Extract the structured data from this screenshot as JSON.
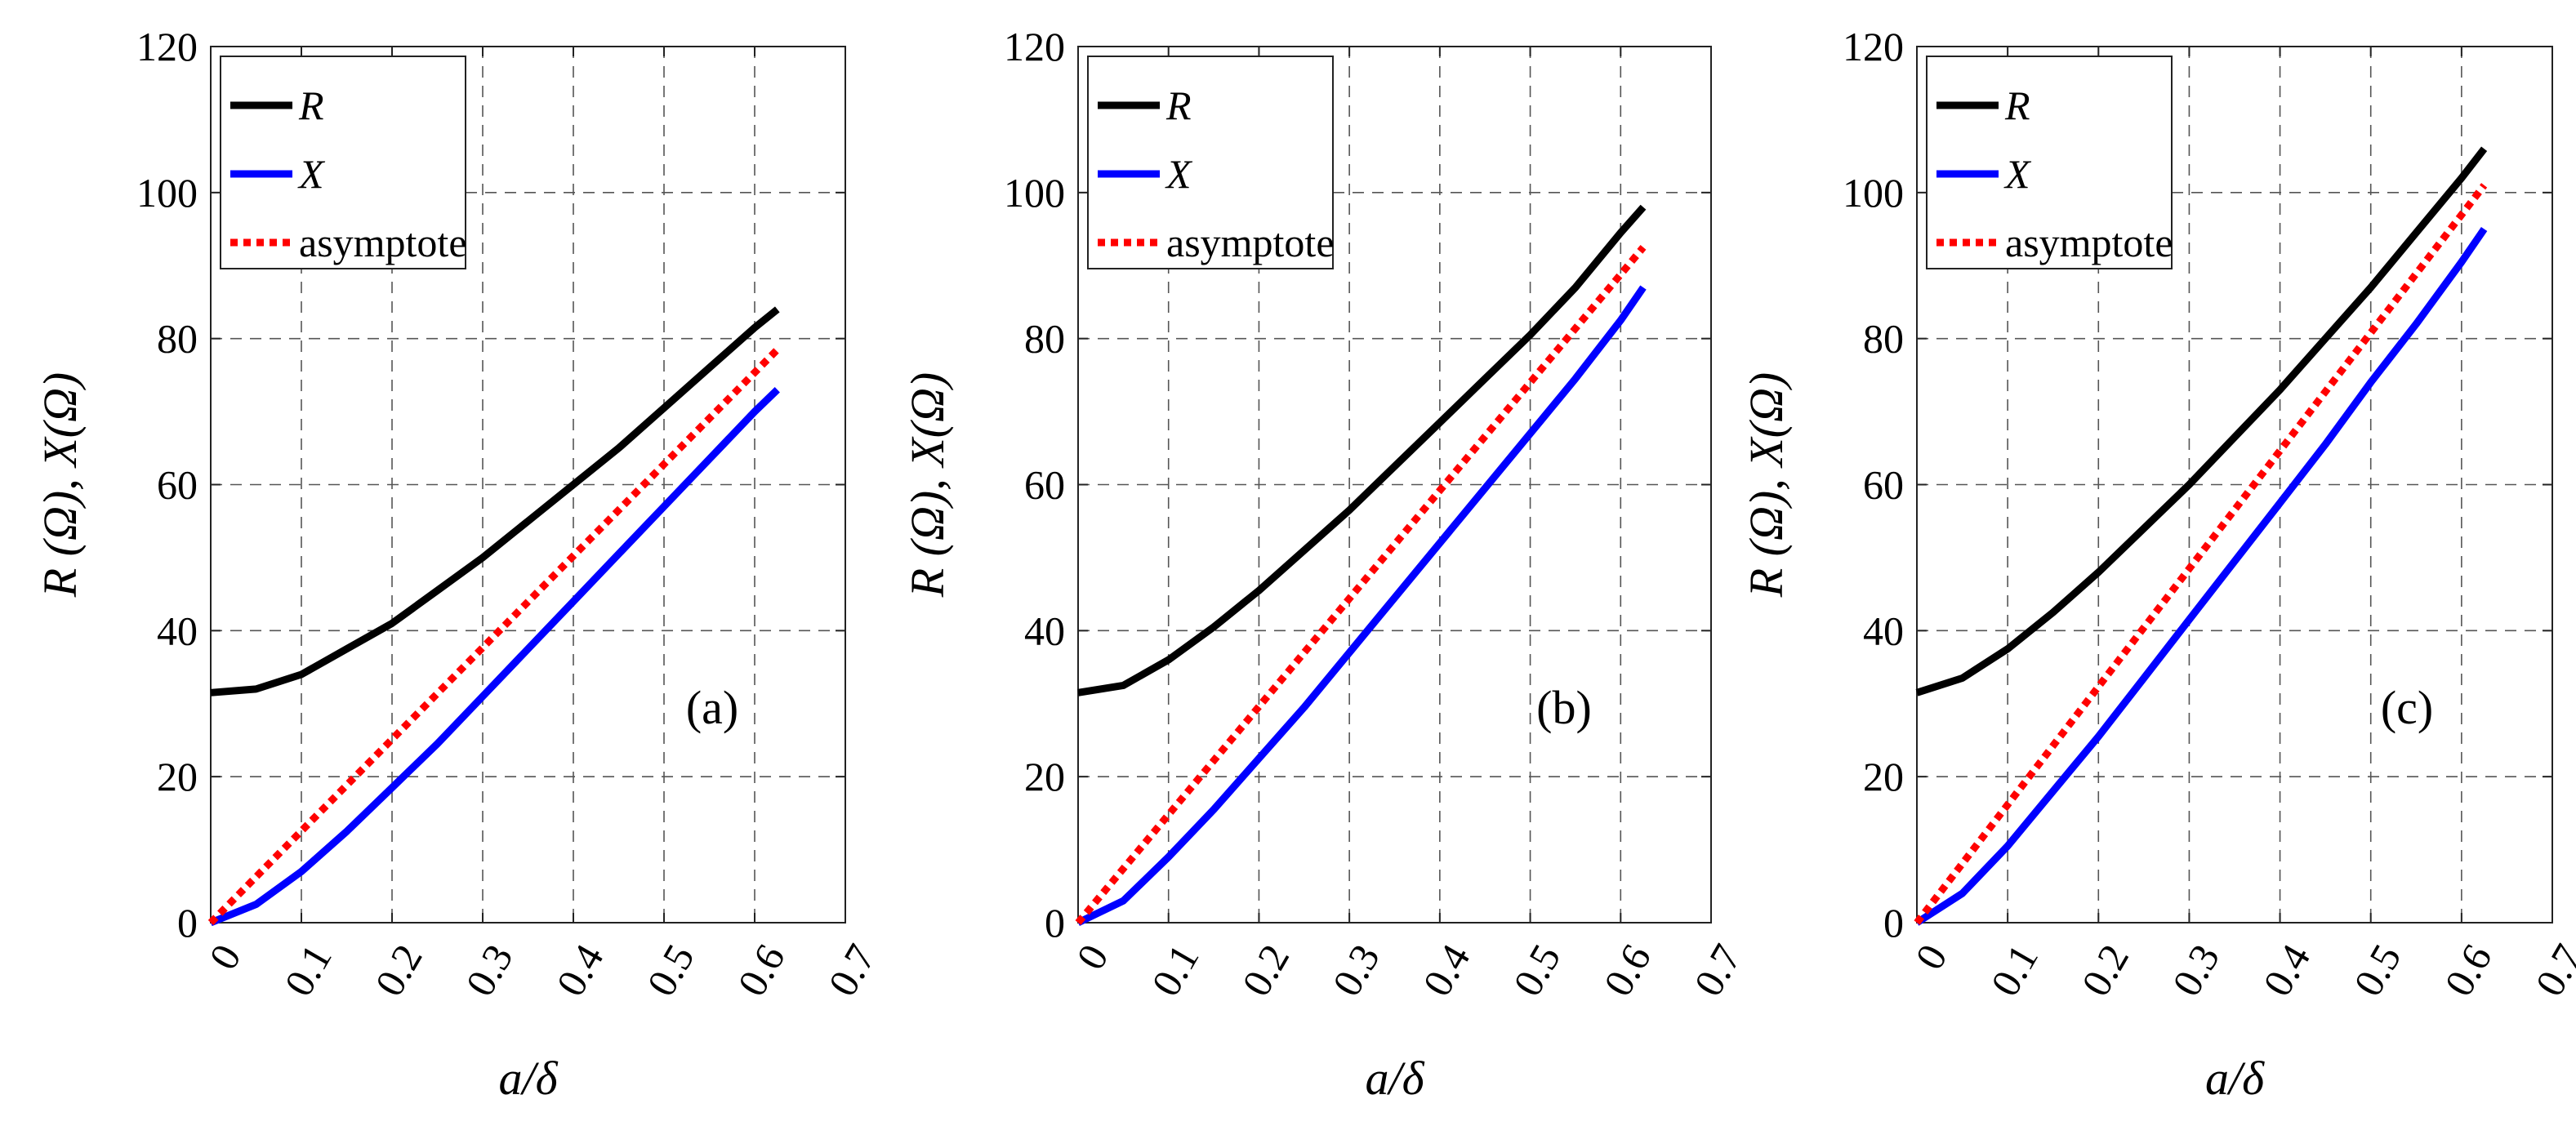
{
  "chart_data": [
    {
      "type": "line",
      "panel_label": "(a)",
      "xlabel": "a/δ",
      "ylabel": "R (Ω), X(Ω)",
      "xlim": [
        0,
        0.7
      ],
      "ylim": [
        0,
        120
      ],
      "xticks": [
        "0",
        "0.1",
        "0.2",
        "0.3",
        "0.4",
        "0.5",
        "0.6",
        "0.7"
      ],
      "yticks": [
        "0",
        "20",
        "40",
        "60",
        "80",
        "100",
        "120"
      ],
      "grid": true,
      "legend_position": "top-left",
      "series": [
        {
          "name": "R",
          "style": "solid",
          "color": "#000000",
          "x": [
            0,
            0.05,
            0.1,
            0.15,
            0.2,
            0.25,
            0.3,
            0.35,
            0.4,
            0.45,
            0.5,
            0.55,
            0.6,
            0.625
          ],
          "y": [
            31.5,
            32.0,
            34.0,
            37.5,
            41.0,
            45.5,
            50.0,
            55.0,
            60.0,
            65.0,
            70.5,
            76.0,
            81.5,
            84.0
          ]
        },
        {
          "name": "X",
          "style": "solid",
          "color": "#0000ff",
          "x": [
            0,
            0.05,
            0.1,
            0.15,
            0.2,
            0.25,
            0.3,
            0.35,
            0.4,
            0.45,
            0.5,
            0.55,
            0.6,
            0.625
          ],
          "y": [
            0,
            2.5,
            7.0,
            12.5,
            18.5,
            24.5,
            31.0,
            37.5,
            44.0,
            50.5,
            57.0,
            63.5,
            70.0,
            73.0
          ]
        },
        {
          "name": "asymptote",
          "style": "dotted",
          "color": "#ff0000",
          "x": [
            0,
            0.625
          ],
          "y": [
            0,
            78.5
          ]
        }
      ]
    },
    {
      "type": "line",
      "panel_label": "(b)",
      "xlabel": "a/δ",
      "ylabel": "R (Ω), X(Ω)",
      "xlim": [
        0,
        0.7
      ],
      "ylim": [
        0,
        120
      ],
      "xticks": [
        "0",
        "0.1",
        "0.2",
        "0.3",
        "0.4",
        "0.5",
        "0.6",
        "0.7"
      ],
      "yticks": [
        "0",
        "20",
        "40",
        "60",
        "80",
        "100",
        "120"
      ],
      "grid": true,
      "legend_position": "top-left",
      "series": [
        {
          "name": "R",
          "style": "solid",
          "color": "#000000",
          "x": [
            0,
            0.05,
            0.1,
            0.15,
            0.2,
            0.25,
            0.3,
            0.35,
            0.4,
            0.45,
            0.5,
            0.55,
            0.6,
            0.625
          ],
          "y": [
            31.5,
            32.5,
            36.0,
            40.5,
            45.5,
            51.0,
            56.5,
            62.5,
            68.5,
            74.5,
            80.5,
            87.0,
            94.5,
            98.0
          ]
        },
        {
          "name": "X",
          "style": "solid",
          "color": "#0000ff",
          "x": [
            0,
            0.05,
            0.1,
            0.15,
            0.2,
            0.25,
            0.3,
            0.35,
            0.4,
            0.45,
            0.5,
            0.55,
            0.6,
            0.625
          ],
          "y": [
            0,
            3.0,
            9.0,
            15.5,
            22.5,
            29.5,
            37.0,
            44.5,
            52.0,
            59.5,
            67.0,
            74.5,
            82.5,
            87.0
          ]
        },
        {
          "name": "asymptote",
          "style": "dotted",
          "color": "#ff0000",
          "x": [
            0,
            0.625
          ],
          "y": [
            0,
            92.5
          ]
        }
      ]
    },
    {
      "type": "line",
      "panel_label": "(c)",
      "xlabel": "a/δ",
      "ylabel": "R (Ω), X(Ω)",
      "xlim": [
        0,
        0.7
      ],
      "ylim": [
        0,
        120
      ],
      "xticks": [
        "0",
        "0.1",
        "0.2",
        "0.3",
        "0.4",
        "0.5",
        "0.6",
        "0.7"
      ],
      "yticks": [
        "0",
        "20",
        "40",
        "60",
        "80",
        "100",
        "120"
      ],
      "grid": true,
      "legend_position": "top-left",
      "series": [
        {
          "name": "R",
          "style": "solid",
          "color": "#000000",
          "x": [
            0,
            0.05,
            0.1,
            0.15,
            0.2,
            0.25,
            0.3,
            0.35,
            0.4,
            0.45,
            0.5,
            0.55,
            0.6,
            0.625
          ],
          "y": [
            31.5,
            33.5,
            37.5,
            42.5,
            48.0,
            54.0,
            60.0,
            66.5,
            73.0,
            80.0,
            87.0,
            94.5,
            102.0,
            106.0
          ]
        },
        {
          "name": "X",
          "style": "solid",
          "color": "#0000ff",
          "x": [
            0,
            0.05,
            0.1,
            0.15,
            0.2,
            0.25,
            0.3,
            0.35,
            0.4,
            0.45,
            0.5,
            0.55,
            0.6,
            0.625
          ],
          "y": [
            0,
            4.0,
            10.5,
            18.0,
            25.5,
            33.5,
            41.5,
            49.5,
            57.5,
            65.5,
            74.0,
            82.0,
            90.5,
            95.0
          ]
        },
        {
          "name": "asymptote",
          "style": "dotted",
          "color": "#ff0000",
          "x": [
            0,
            0.625
          ],
          "y": [
            0,
            101.0
          ]
        }
      ]
    }
  ]
}
